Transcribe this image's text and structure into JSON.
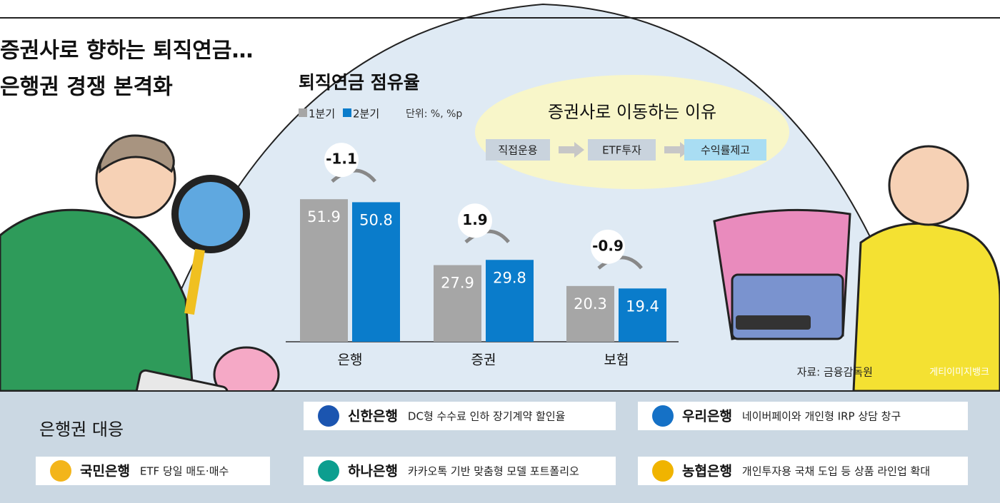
{
  "header": {
    "title_lines": [
      "증권사로 향하는 퇴직연금…",
      "은행권 경쟁 본격화"
    ]
  },
  "chart_data": {
    "type": "bar",
    "title": "퇴직연금 점유율",
    "unit": "단위: %, %p",
    "categories": [
      "은행",
      "증권",
      "보험"
    ],
    "series": [
      {
        "name": "1분기",
        "color": "#a6a6a6",
        "values": [
          51.9,
          27.9,
          20.3
        ]
      },
      {
        "name": "2분기",
        "color": "#0a7ccb",
        "values": [
          50.8,
          29.8,
          19.4
        ]
      }
    ],
    "changes": [
      -1.1,
      1.9,
      -0.9
    ],
    "source": "자료: 금융감독원"
  },
  "reasons": {
    "title": "증권사로 이동하는 이유",
    "steps": [
      "직접운용",
      "ETF투자",
      "수익률제고"
    ]
  },
  "response": {
    "title": "은행권 대응",
    "banks": [
      {
        "name": "국민은행",
        "text": "ETF 당일 매도·매수"
      },
      {
        "name": "신한은행",
        "text": "DC형 수수료 인하 장기계약 할인율"
      },
      {
        "name": "하나은행",
        "text": "카카오톡 기반 맞춤형 모델 포트폴리오"
      },
      {
        "name": "우리은행",
        "text": "네이버페이와 개인형 IRP 상담 창구"
      },
      {
        "name": "농협은행",
        "text": "개인투자용 국채 도입 등 상품 라인업 확대"
      }
    ]
  },
  "credit": "게티이미지뱅크"
}
